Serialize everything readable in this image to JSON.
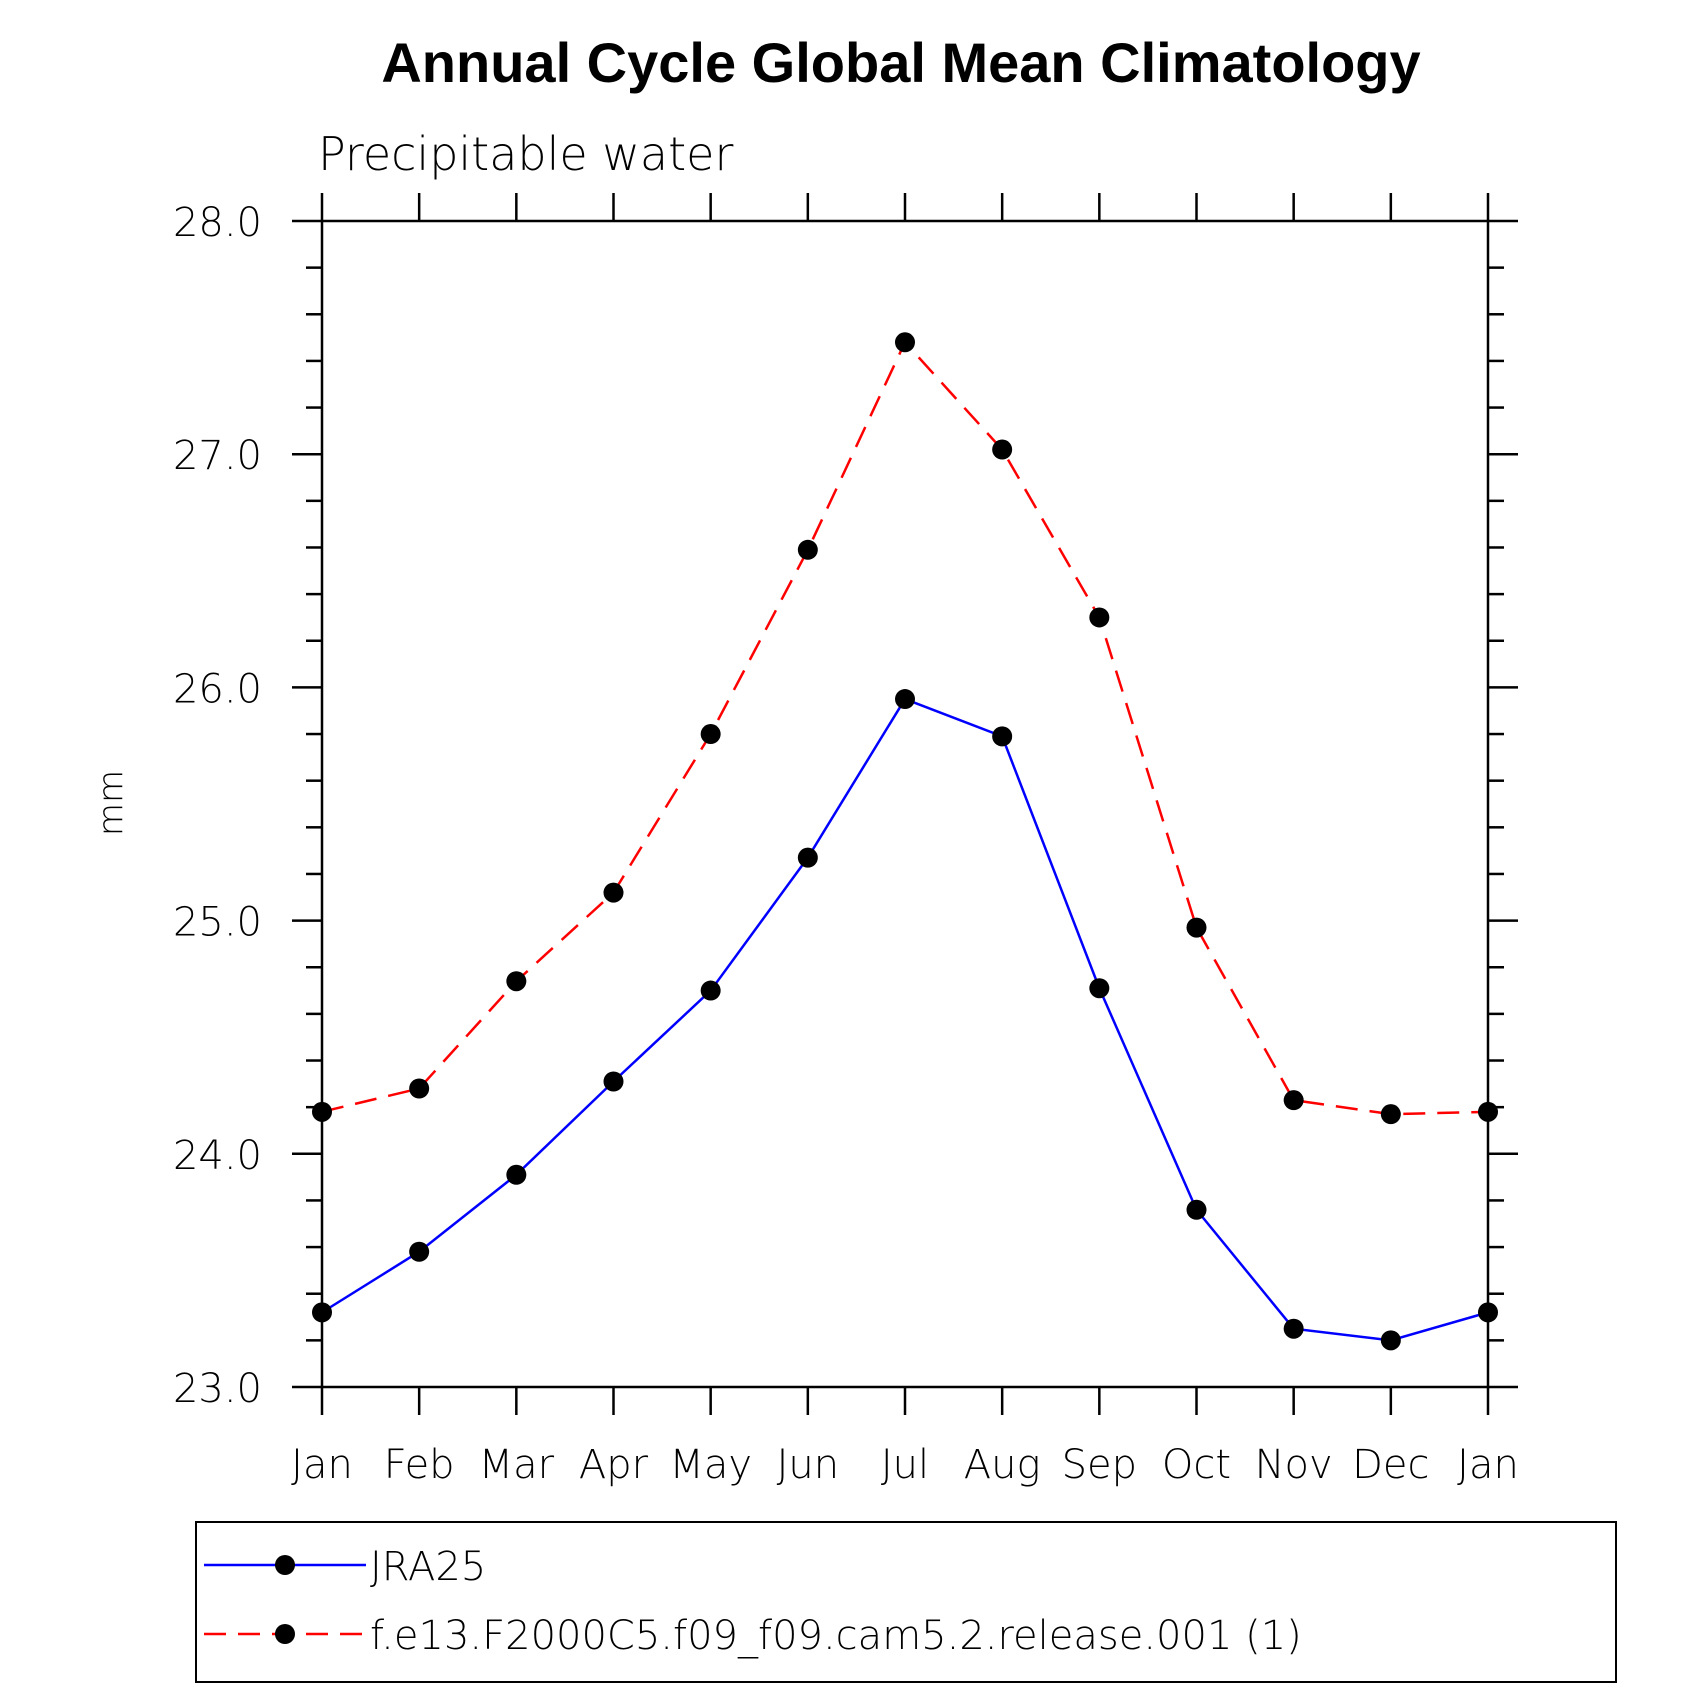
{
  "chart_data": {
    "type": "line",
    "title": "Annual Cycle Global Mean Climatology",
    "subtitle": "Precipitable water",
    "xlabel": "",
    "ylabel": "mm",
    "categories": [
      "Jan",
      "Feb",
      "Mar",
      "Apr",
      "May",
      "Jun",
      "Jul",
      "Aug",
      "Sep",
      "Oct",
      "Nov",
      "Dec",
      "Jan"
    ],
    "ylim": [
      23.0,
      28.0
    ],
    "yticks": [
      "23.0",
      "24.0",
      "25.0",
      "26.0",
      "27.0",
      "28.0"
    ],
    "ytick_values": [
      23.0,
      24.0,
      25.0,
      26.0,
      27.0,
      28.0
    ],
    "series": [
      {
        "name": "JRA25",
        "color": "#0000ff",
        "dash": "solid",
        "values": [
          23.32,
          23.58,
          23.91,
          24.31,
          24.7,
          25.27,
          25.95,
          25.79,
          24.71,
          23.76,
          23.25,
          23.2,
          23.32
        ]
      },
      {
        "name": "f.e13.F2000C5.f09_f09.cam5.2.release.001 (1)",
        "color": "#ff0000",
        "dash": "dashed",
        "values": [
          24.18,
          24.28,
          24.74,
          25.12,
          25.8,
          26.59,
          27.48,
          27.02,
          26.3,
          24.97,
          24.23,
          24.17,
          24.18
        ]
      }
    ],
    "marker_color": "#000000",
    "legend_position": "bottom"
  }
}
